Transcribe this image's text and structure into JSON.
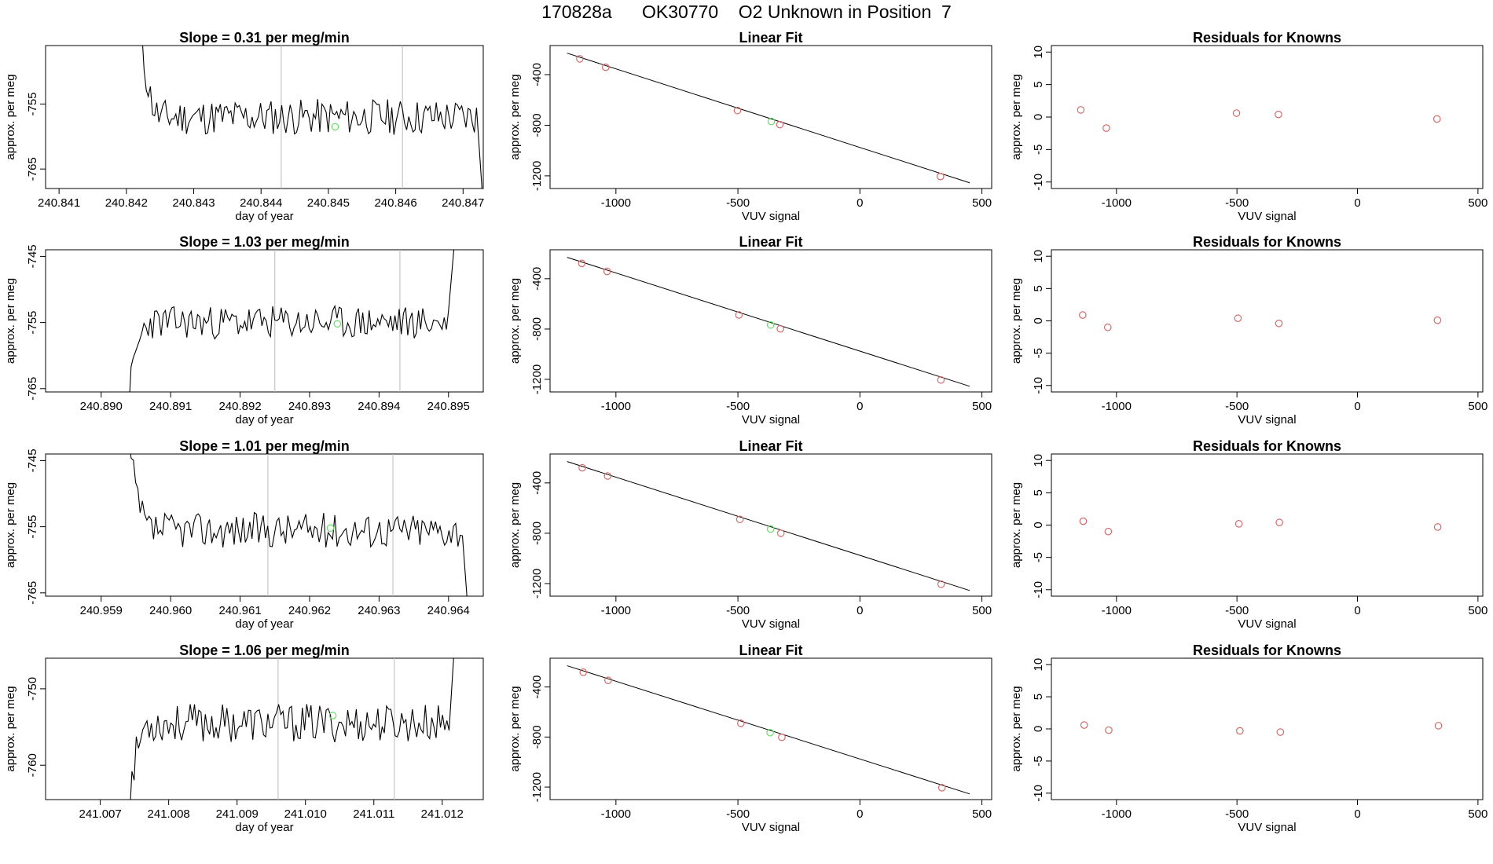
{
  "page": {
    "title": "170828a      OK30770    O2 Unknown in Position  7",
    "colors": {
      "trace": "#000000",
      "known_points": "#d46a6a",
      "unknown_point": "#66dd66",
      "cursor_lines": "#bbbbbb"
    }
  },
  "chart_data": [
    {
      "id": "r1c1",
      "type": "line",
      "title": "Slope =  0.31  per meg/min",
      "xlabel": "day of year",
      "ylabel": "approx. per meg",
      "xlim": [
        240.8408,
        240.8473
      ],
      "ylim": [
        -768,
        -746
      ],
      "xticks": [
        240.841,
        240.842,
        240.843,
        240.844,
        240.845,
        240.846,
        240.847
      ],
      "xtick_labels": [
        "240.841",
        "240.842",
        "240.843",
        "240.844",
        "240.845",
        "240.846",
        "240.847"
      ],
      "yticks": [
        -755,
        -765
      ],
      "ytick_labels": [
        "-755",
        "-765"
      ],
      "vlines": [
        240.8443,
        240.8461
      ],
      "noise": {
        "start": 240.8422,
        "end": 240.8472,
        "base": -757.0,
        "amp": 2.0,
        "seed": 11,
        "n": 160,
        "entry": -744,
        "exit": -770
      },
      "unknown_point": [
        240.8451,
        -758.5
      ]
    },
    {
      "id": "r1c2",
      "type": "scatter",
      "title": "Linear Fit",
      "xlabel": "VUV signal",
      "ylabel": "approx. per meg",
      "xlim": [
        -1270,
        540
      ],
      "ylim": [
        -1300,
        -170
      ],
      "xticks": [
        -1000,
        -500,
        0,
        500
      ],
      "xtick_labels": [
        "-1000",
        "-500",
        "0",
        "500"
      ],
      "yticks": [
        -400,
        -800,
        -1200
      ],
      "ytick_labels": [
        "-400",
        "-800",
        "-1200"
      ],
      "fit_line": [
        [
          -1200,
          -230
        ],
        [
          450,
          -1255
        ]
      ],
      "known_points": [
        [
          -1148,
          -275
        ],
        [
          -1042,
          -342
        ],
        [
          -502,
          -684
        ],
        [
          -328,
          -795
        ],
        [
          330,
          -1205
        ]
      ],
      "unknown_point": [
        -363,
        -770
      ]
    },
    {
      "id": "r1c3",
      "type": "scatter",
      "title": "Residuals for Knowns",
      "xlabel": "VUV signal",
      "ylabel": "approx. per meg",
      "xlim": [
        -1270,
        520
      ],
      "ylim": [
        -11,
        11
      ],
      "xticks": [
        -1000,
        -500,
        0,
        500
      ],
      "xtick_labels": [
        "-1000",
        "-500",
        "0",
        "500"
      ],
      "yticks": [
        10,
        5,
        0,
        -5,
        -10
      ],
      "ytick_labels": [
        "10",
        "5",
        "0",
        "-5",
        "-10"
      ],
      "known_points": [
        [
          -1148,
          1.1
        ],
        [
          -1042,
          -1.7
        ],
        [
          -502,
          0.6
        ],
        [
          -328,
          0.4
        ],
        [
          330,
          -0.3
        ]
      ]
    },
    {
      "id": "r2c1",
      "type": "line",
      "title": "Slope =  1.03  per meg/min",
      "xlabel": "day of year",
      "ylabel": "approx. per meg",
      "xlim": [
        240.8892,
        240.8955
      ],
      "ylim": [
        -765.5,
        -744
      ],
      "xticks": [
        240.89,
        240.891,
        240.892,
        240.893,
        240.894,
        240.895
      ],
      "xtick_labels": [
        "240.890",
        "240.891",
        "240.892",
        "240.893",
        "240.894",
        "240.895"
      ],
      "yticks": [
        -745,
        -755,
        -765
      ],
      "ytick_labels": [
        "-745",
        "-755",
        "-765"
      ],
      "vlines": [
        240.8925,
        240.8943
      ],
      "noise": {
        "start": 240.8904,
        "end": 240.895,
        "base": -755.0,
        "amp": 1.8,
        "seed": 23,
        "n": 150,
        "entry": -766,
        "exit": -742
      },
      "unknown_point": [
        240.8934,
        -755.2
      ]
    },
    {
      "id": "r2c2",
      "type": "scatter",
      "title": "Linear Fit",
      "xlabel": "VUV signal",
      "ylabel": "approx. per meg",
      "xlim": [
        -1270,
        540
      ],
      "ylim": [
        -1300,
        -170
      ],
      "xticks": [
        -1000,
        -500,
        0,
        500
      ],
      "xtick_labels": [
        "-1000",
        "-500",
        "0",
        "500"
      ],
      "yticks": [
        -400,
        -800,
        -1200
      ],
      "ytick_labels": [
        "-400",
        "-800",
        "-1200"
      ],
      "fit_line": [
        [
          -1200,
          -230
        ],
        [
          450,
          -1255
        ]
      ],
      "known_points": [
        [
          -1140,
          -278
        ],
        [
          -1036,
          -342
        ],
        [
          -496,
          -688
        ],
        [
          -326,
          -798
        ],
        [
          332,
          -1205
        ]
      ],
      "unknown_point": [
        -366,
        -768
      ]
    },
    {
      "id": "r2c3",
      "type": "scatter",
      "title": "Residuals for Knowns",
      "xlabel": "VUV signal",
      "ylabel": "approx. per meg",
      "xlim": [
        -1270,
        520
      ],
      "ylim": [
        -11,
        11
      ],
      "xticks": [
        -1000,
        -500,
        0,
        500
      ],
      "xtick_labels": [
        "-1000",
        "-500",
        "0",
        "500"
      ],
      "yticks": [
        10,
        5,
        0,
        -5,
        -10
      ],
      "ytick_labels": [
        "10",
        "5",
        "0",
        "-5",
        "-10"
      ],
      "known_points": [
        [
          -1140,
          0.9
        ],
        [
          -1036,
          -1.0
        ],
        [
          -496,
          0.4
        ],
        [
          -326,
          -0.4
        ],
        [
          332,
          0.1
        ]
      ]
    },
    {
      "id": "r3c1",
      "type": "line",
      "title": "Slope =  1.01  per meg/min",
      "xlabel": "day of year",
      "ylabel": "approx. per meg",
      "xlim": [
        240.9582,
        240.9645
      ],
      "ylim": [
        -765.5,
        -744
      ],
      "xticks": [
        240.959,
        240.96,
        240.961,
        240.962,
        240.963,
        240.964
      ],
      "xtick_labels": [
        "240.959",
        "240.960",
        "240.961",
        "240.962",
        "240.963",
        "240.964"
      ],
      "yticks": [
        -745,
        -755,
        -765
      ],
      "ytick_labels": [
        "-745",
        "-755",
        "-765"
      ],
      "vlines": [
        240.9614,
        240.9632
      ],
      "noise": {
        "start": 240.9594,
        "end": 240.9642,
        "base": -755.5,
        "amp": 1.9,
        "seed": 37,
        "n": 150,
        "entry": -743,
        "exit": -770
      },
      "unknown_point": [
        240.9623,
        -755.2
      ]
    },
    {
      "id": "r3c2",
      "type": "scatter",
      "title": "Linear Fit",
      "xlabel": "VUV signal",
      "ylabel": "approx. per meg",
      "xlim": [
        -1270,
        540
      ],
      "ylim": [
        -1300,
        -170
      ],
      "xticks": [
        -1000,
        -500,
        0,
        500
      ],
      "xtick_labels": [
        "-1000",
        "-500",
        "0",
        "500"
      ],
      "yticks": [
        -400,
        -800,
        -1200
      ],
      "ytick_labels": [
        "-400",
        "-800",
        "-1200"
      ],
      "fit_line": [
        [
          -1200,
          -230
        ],
        [
          450,
          -1255
        ]
      ],
      "known_points": [
        [
          -1138,
          -280
        ],
        [
          -1034,
          -345
        ],
        [
          -492,
          -690
        ],
        [
          -324,
          -800
        ],
        [
          333,
          -1205
        ]
      ],
      "unknown_point": [
        -366,
        -766
      ]
    },
    {
      "id": "r3c3",
      "type": "scatter",
      "title": "Residuals for Knowns",
      "xlabel": "VUV signal",
      "ylabel": "approx. per meg",
      "xlim": [
        -1270,
        520
      ],
      "ylim": [
        -11,
        11
      ],
      "xticks": [
        -1000,
        -500,
        0,
        500
      ],
      "xtick_labels": [
        "-1000",
        "-500",
        "0",
        "500"
      ],
      "yticks": [
        10,
        5,
        0,
        -5,
        -10
      ],
      "ytick_labels": [
        "10",
        "5",
        "0",
        "-5",
        "-10"
      ],
      "known_points": [
        [
          -1138,
          0.6
        ],
        [
          -1034,
          -1.0
        ],
        [
          -492,
          0.2
        ],
        [
          -324,
          0.4
        ],
        [
          333,
          -0.3
        ]
      ]
    },
    {
      "id": "r4c1",
      "type": "line",
      "title": "Slope =  1.06  per meg/min",
      "xlabel": "day of year",
      "ylabel": "approx. per meg",
      "xlim": [
        241.0062,
        241.0126
      ],
      "ylim": [
        -764.5,
        -746
      ],
      "xticks": [
        241.007,
        241.008,
        241.009,
        241.01,
        241.011,
        241.012
      ],
      "xtick_labels": [
        "241.007",
        "241.008",
        "241.009",
        "241.010",
        "241.011",
        "241.012"
      ],
      "yticks": [
        -750,
        -760
      ],
      "ytick_labels": [
        "-750",
        "-760"
      ],
      "vlines": [
        241.0096,
        241.0113
      ],
      "noise": {
        "start": 241.0074,
        "end": 241.0121,
        "base": -754.5,
        "amp": 1.8,
        "seed": 53,
        "n": 150,
        "entry": -766,
        "exit": -742
      },
      "unknown_point": [
        241.0104,
        -753.5
      ]
    },
    {
      "id": "r4c2",
      "type": "scatter",
      "title": "Linear Fit",
      "xlabel": "VUV signal",
      "ylabel": "approx. per meg",
      "xlim": [
        -1270,
        540
      ],
      "ylim": [
        -1300,
        -170
      ],
      "xticks": [
        -1000,
        -500,
        0,
        500
      ],
      "xtick_labels": [
        "-1000",
        "-500",
        "0",
        "500"
      ],
      "yticks": [
        -400,
        -800,
        -1200
      ],
      "ytick_labels": [
        "-400",
        "-800",
        "-1200"
      ],
      "fit_line": [
        [
          -1200,
          -230
        ],
        [
          450,
          -1255
        ]
      ],
      "known_points": [
        [
          -1134,
          -282
        ],
        [
          -1032,
          -347
        ],
        [
          -488,
          -690
        ],
        [
          -320,
          -802
        ],
        [
          336,
          -1205
        ]
      ],
      "unknown_point": [
        -368,
        -765
      ]
    },
    {
      "id": "r4c3",
      "type": "scatter",
      "title": "Residuals for Knowns",
      "xlabel": "VUV signal",
      "ylabel": "approx. per meg",
      "xlim": [
        -1270,
        520
      ],
      "ylim": [
        -11,
        11
      ],
      "xticks": [
        -1000,
        -500,
        0,
        500
      ],
      "xtick_labels": [
        "-1000",
        "-500",
        "0",
        "500"
      ],
      "yticks": [
        10,
        5,
        0,
        -5,
        -10
      ],
      "ytick_labels": [
        "10",
        "5",
        "0",
        "-5",
        "-10"
      ],
      "known_points": [
        [
          -1134,
          0.6
        ],
        [
          -1032,
          -0.2
        ],
        [
          -488,
          -0.3
        ],
        [
          -320,
          -0.5
        ],
        [
          336,
          0.5
        ]
      ]
    }
  ]
}
